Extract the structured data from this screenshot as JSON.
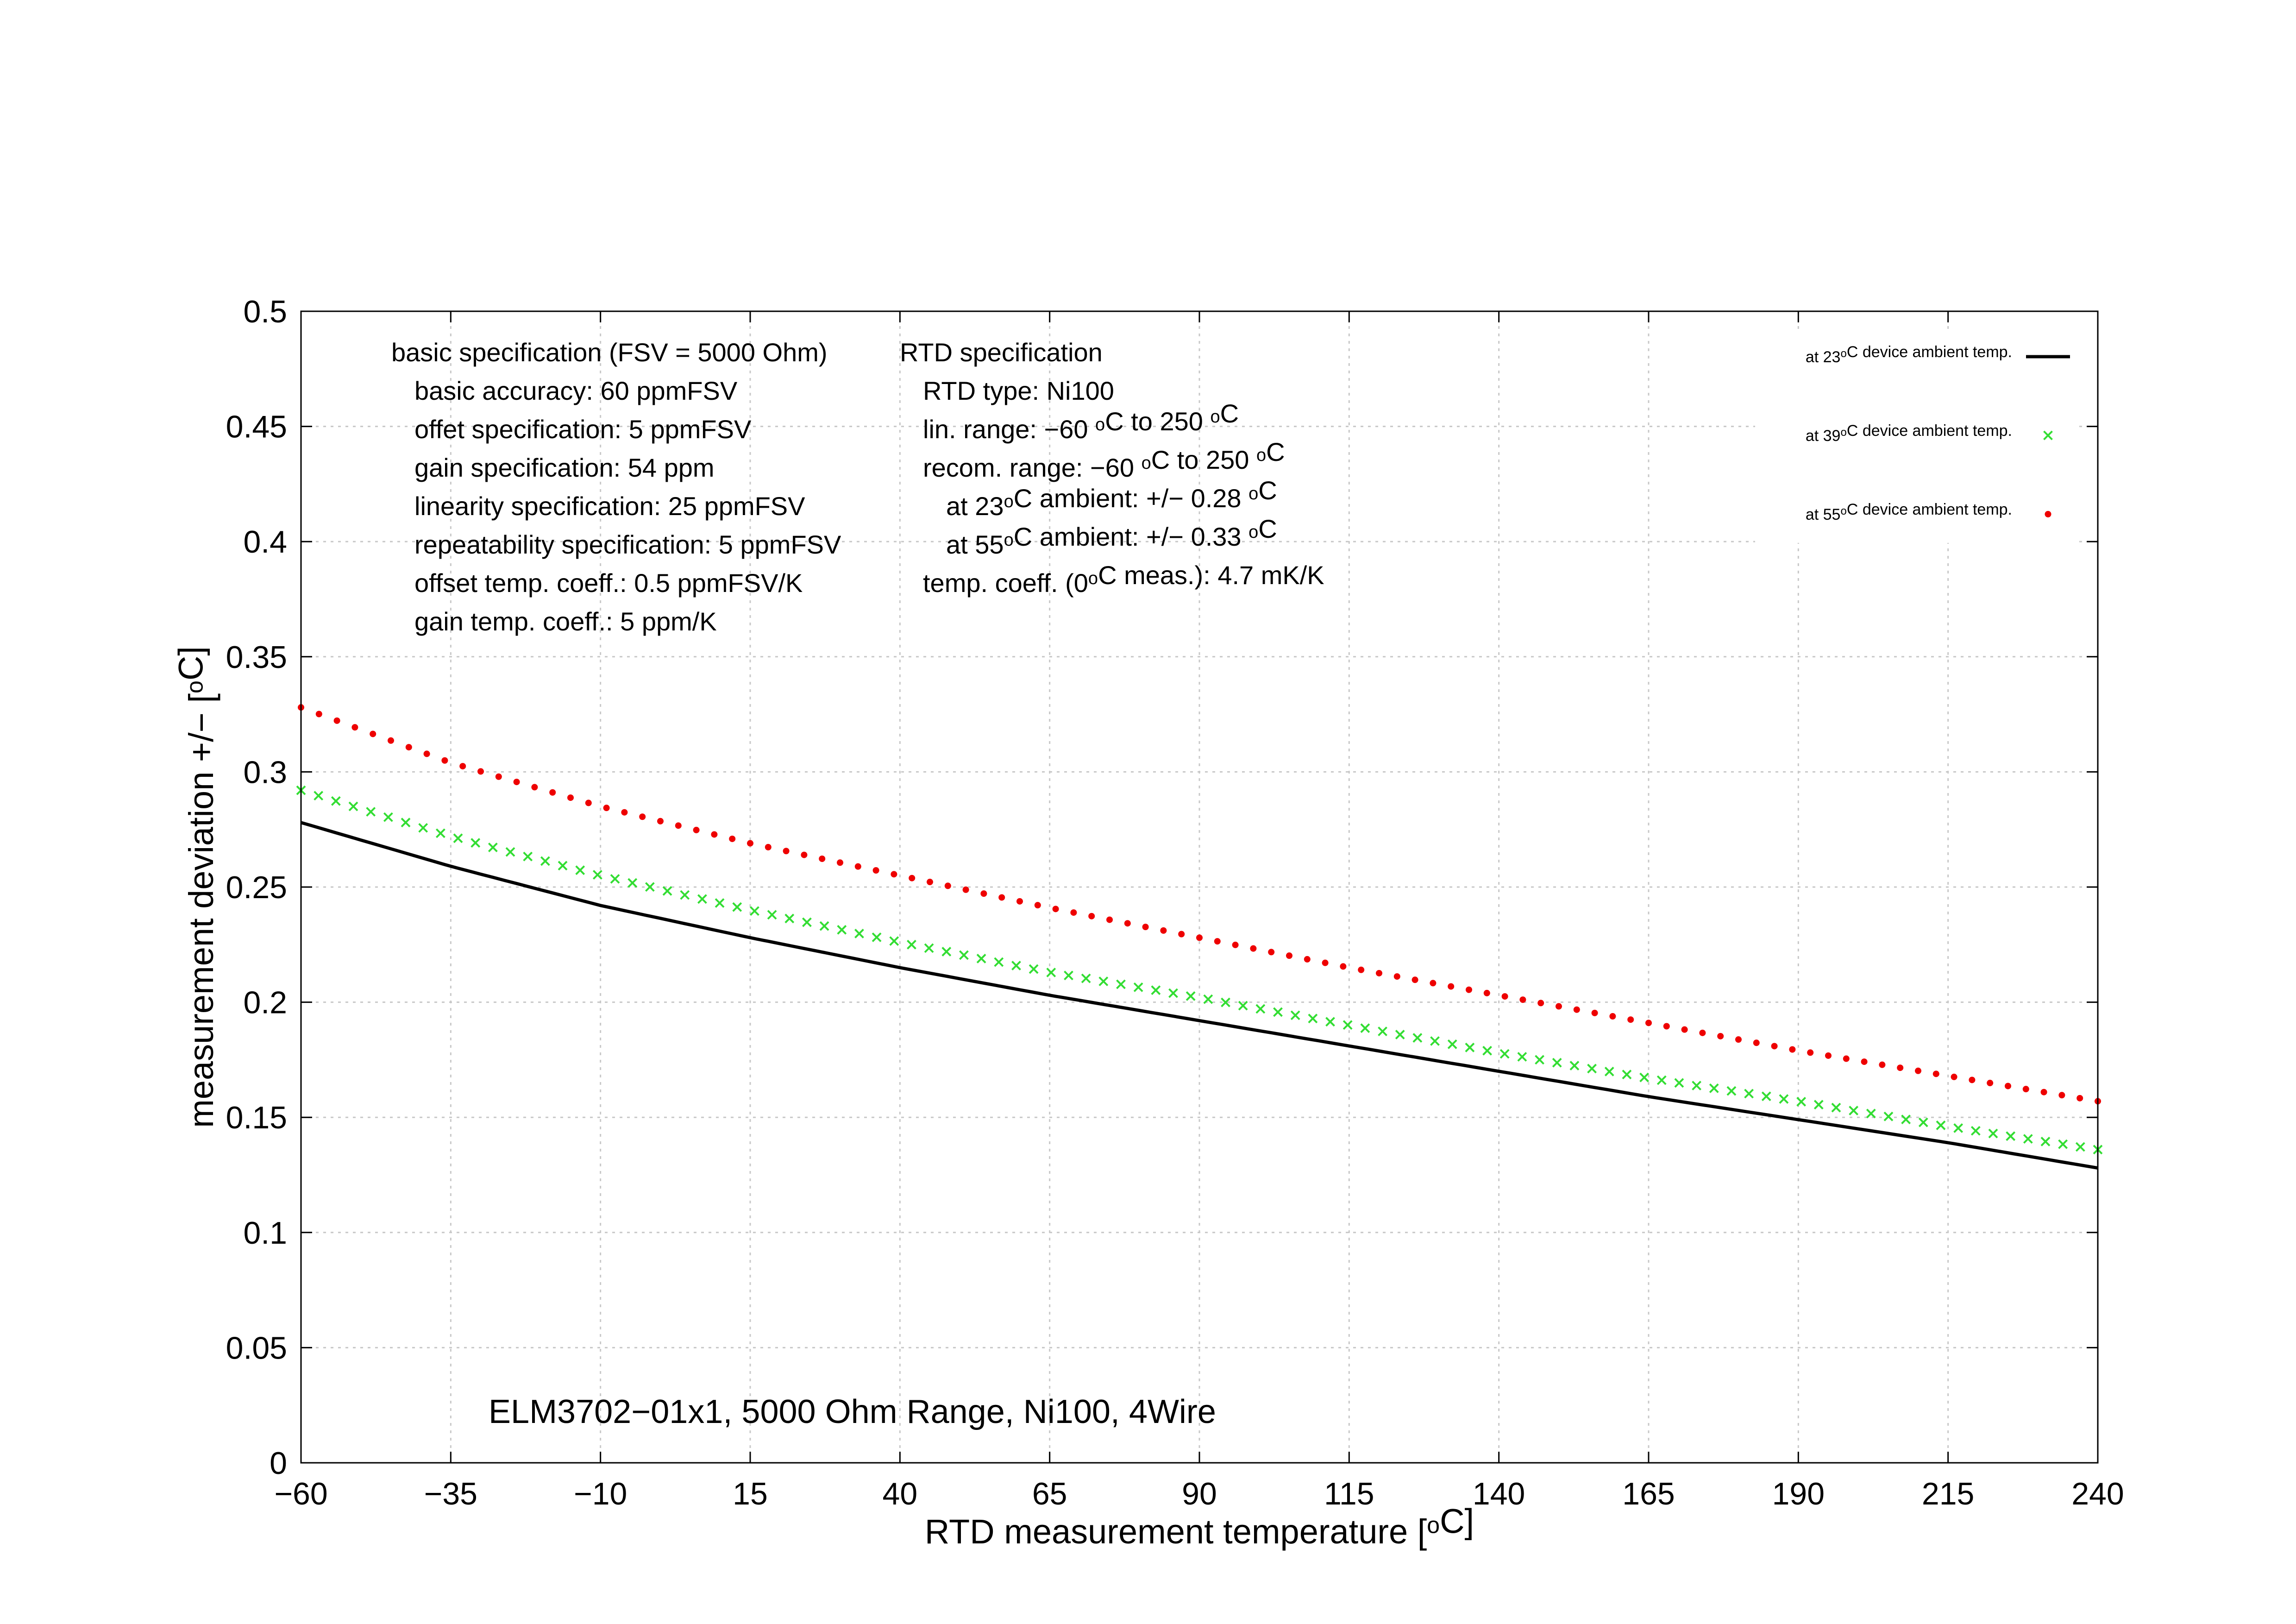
{
  "chart_data": {
    "type": "line",
    "title": "ELM3702−01x1, 5000 Ohm Range, Ni100, 4Wire",
    "xlabel": "RTD measurement temperature [°C]",
    "xlabel_parts": [
      "RTD measurement temperature [",
      "o",
      "C]"
    ],
    "ylabel": "measurement deviation +/− [°C]",
    "ylabel_parts": [
      "measurement deviation +/− [",
      "o",
      "C]"
    ],
    "xlim": [
      -60,
      240
    ],
    "ylim": [
      0,
      0.5
    ],
    "xticks": [
      -60,
      -35,
      -10,
      15,
      40,
      65,
      90,
      115,
      140,
      165,
      190,
      215,
      240
    ],
    "xtick_labels": [
      "−60",
      "−35",
      "−10",
      "15",
      "40",
      "65",
      "90",
      "115",
      "140",
      "165",
      "190",
      "215",
      "240"
    ],
    "yticks": [
      0,
      0.05,
      0.1,
      0.15,
      0.2,
      0.25,
      0.3,
      0.35,
      0.4,
      0.45,
      0.5
    ],
    "ytick_labels": [
      "0",
      "0.05",
      "0.1",
      "0.15",
      "0.2",
      "0.25",
      "0.3",
      "0.35",
      "0.4",
      "0.45",
      "0.5"
    ],
    "grid": true,
    "legend_position": "top-right",
    "series": [
      {
        "name": "at 23°C device ambient temp.",
        "legend_parts": [
          "at 23",
          "o",
          "C device ambient temp."
        ],
        "style": "line",
        "color": "#000000",
        "x": [
          -60,
          -35,
          -10,
          15,
          40,
          65,
          90,
          115,
          140,
          165,
          190,
          215,
          240
        ],
        "y": [
          0.278,
          0.259,
          0.242,
          0.228,
          0.215,
          0.203,
          0.192,
          0.181,
          0.17,
          0.159,
          0.149,
          0.139,
          0.128
        ]
      },
      {
        "name": "at 39°C device ambient temp.",
        "legend_parts": [
          "at 39",
          "o",
          "C device ambient temp."
        ],
        "style": "cross",
        "color": "#33dd33",
        "x": [
          -60,
          -35,
          -10,
          15,
          40,
          65,
          90,
          115,
          140,
          165,
          190,
          215,
          240
        ],
        "y": [
          0.292,
          0.272,
          0.255,
          0.24,
          0.226,
          0.213,
          0.202,
          0.19,
          0.178,
          0.167,
          0.157,
          0.146,
          0.136
        ]
      },
      {
        "name": "at 55°C device ambient temp.",
        "legend_parts": [
          "at 55",
          "o",
          "C device ambient temp."
        ],
        "style": "dot",
        "color": "#ee0000",
        "x": [
          -60,
          -35,
          -10,
          15,
          40,
          65,
          90,
          115,
          140,
          165,
          190,
          215,
          240
        ],
        "y": [
          0.328,
          0.304,
          0.285,
          0.269,
          0.255,
          0.241,
          0.228,
          0.215,
          0.203,
          0.191,
          0.179,
          0.168,
          0.157
        ]
      }
    ],
    "annotations": {
      "basic_spec": [
        "basic specification (FSV = 5000 Ohm)",
        "basic accuracy: 60 ppmFSV",
        "offet specification: 5 ppmFSV",
        "gain specification: 54 ppm",
        "linearity specification: 25 ppmFSV",
        "repeatability specification: 5 ppmFSV",
        "offset temp. coeff.: 0.5 ppmFSV/K",
        "gain temp. coeff.: 5 ppm/K"
      ],
      "rtd_spec": [
        [
          "RTD specification"
        ],
        [
          "RTD type: Ni100"
        ],
        [
          "lin. range: −60 ",
          "o",
          "C to 250 ",
          "o",
          "C"
        ],
        [
          "recom. range: −60 ",
          "o",
          "C to 250 ",
          "o",
          "C"
        ],
        [
          "at 23",
          "o",
          "C ambient: +/− 0.28 ",
          "o",
          "C"
        ],
        [
          "at 55",
          "o",
          "C ambient: +/− 0.33 ",
          "o",
          "C"
        ],
        [
          "temp. coeff. (0",
          "o",
          "C meas.): 4.7 mK/K"
        ]
      ]
    }
  }
}
